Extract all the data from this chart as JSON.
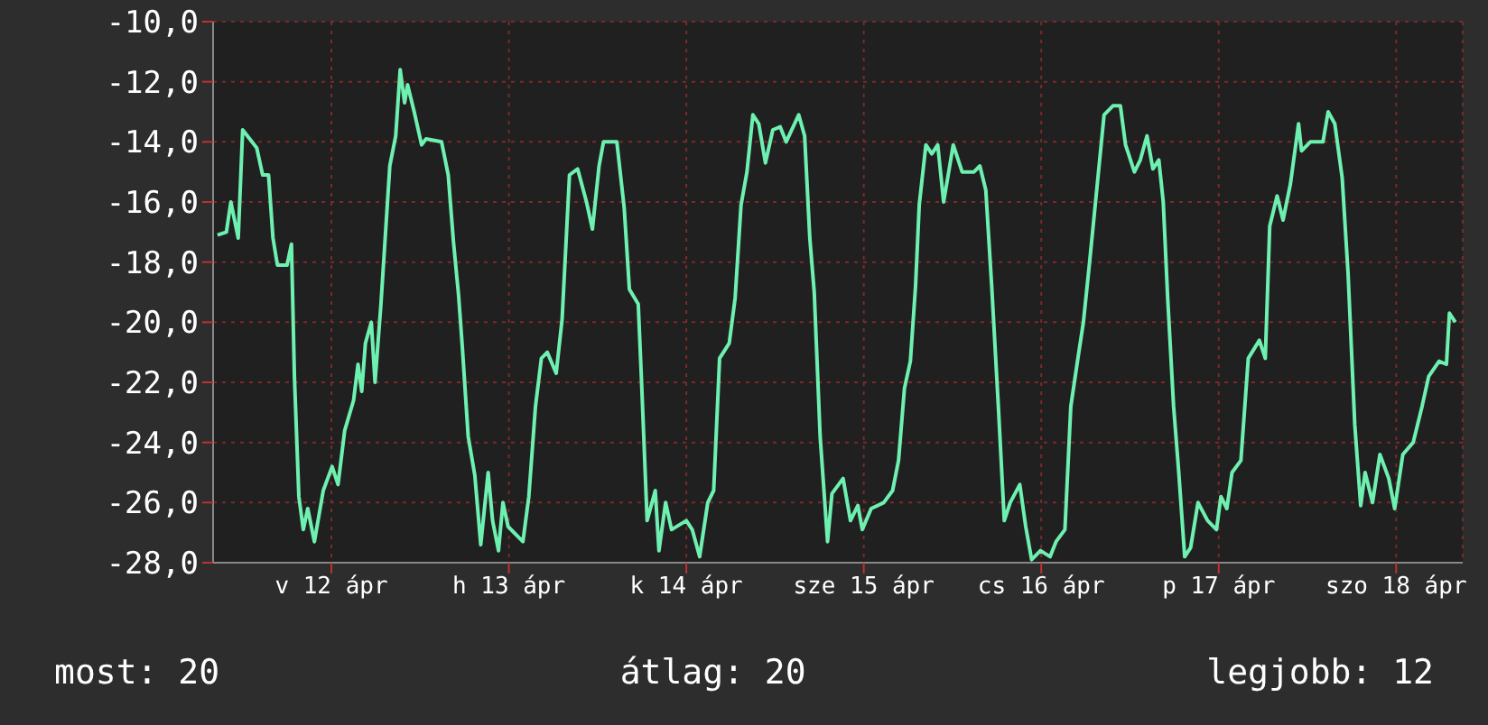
{
  "chart_data": {
    "type": "line",
    "x": [
      "--04-11T20:36",
      "--04-11T21:48",
      "--04-11T22:24",
      "--04-11T23:24",
      "--04-12T00:00",
      "--04-12T01:54",
      "--04-12T02:42",
      "--04-12T03:30",
      "--04-12T04:06",
      "--04-12T04:42",
      "--04-12T06:00",
      "--04-12T06:36",
      "--04-12T07:00",
      "--04-12T07:36",
      "--04-12T08:12",
      "--04-12T08:48",
      "--04-12T09:42",
      "--04-12T10:54",
      "--04-12T12:06",
      "--04-12T12:54",
      "--04-12T13:48",
      "--04-12T15:00",
      "--04-12T15:36",
      "--04-12T16:06",
      "--04-12T16:36",
      "--04-12T17:24",
      "--04-12T17:54",
      "--04-12T18:42",
      "--04-12T19:54",
      "--04-12T20:42",
      "--04-12T21:18",
      "--04-12T21:54",
      "--04-12T22:18",
      "--04-12T23:12",
      "--04-13T00:12",
      "--04-13T00:48",
      "--04-13T02:54",
      "--04-13T03:48",
      "--04-13T04:30",
      "--04-13T05:12",
      "--04-13T05:42",
      "--04-13T06:30",
      "--04-13T07:24",
      "--04-13T08:12",
      "--04-13T09:12",
      "--04-13T09:48",
      "--04-13T10:36",
      "--04-13T11:12",
      "--04-13T11:54",
      "--04-13T13:54",
      "--04-13T14:42",
      "--04-13T15:36",
      "--04-13T16:24",
      "--04-13T17:12",
      "--04-13T18:24",
      "--04-13T19:12",
      "--04-13T20:12",
      "--04-13T21:18",
      "--04-13T22:30",
      "--04-13T23:18",
      "--04-14T00:12",
      "--04-14T00:48",
      "--04-14T02:36",
      "--04-14T03:36",
      "--04-14T04:18",
      "--04-14T05:30",
      "--04-14T05:54",
      "--04-14T06:42",
      "--04-14T07:48",
      "--04-14T08:18",
      "--04-14T09:12",
      "--04-14T10:00",
      "--04-14T12:00",
      "--04-14T12:48",
      "--04-14T13:48",
      "--04-14T14:54",
      "--04-14T15:42",
      "--04-14T16:30",
      "--04-14T17:48",
      "--04-14T18:36",
      "--04-14T19:24",
      "--04-14T20:12",
      "--04-14T21:00",
      "--04-14T21:48",
      "--04-14T22:42",
      "--04-14T23:42",
      "--04-15T00:42",
      "--04-15T01:30",
      "--04-15T03:12",
      "--04-15T04:00",
      "--04-15T04:42",
      "--04-15T05:18",
      "--04-15T06:06",
      "--04-15T07:06",
      "--04-15T07:42",
      "--04-15T09:12",
      "--04-15T10:12",
      "--04-15T11:12",
      "--04-15T11:48",
      "--04-15T13:00",
      "--04-15T14:42",
      "--04-15T15:54",
      "--04-15T16:42",
      "--04-15T17:30",
      "--04-15T18:18",
      "--04-15T19:00",
      "--04-15T19:30",
      "--04-15T20:24",
      "--04-15T21:12",
      "--04-15T22:00",
      "--04-15T22:48",
      "--04-16T00:06",
      "--04-16T01:18",
      "--04-16T02:54",
      "--04-16T03:42",
      "--04-16T04:30",
      "--04-16T05:18",
      "--04-16T06:12",
      "--04-16T07:00",
      "--04-16T07:48",
      "--04-16T09:06",
      "--04-16T09:54",
      "--04-16T10:42",
      "--04-16T11:54",
      "--04-16T13:12",
      "--04-16T14:00",
      "--04-16T15:12",
      "--04-16T16:00",
      "--04-16T16:54",
      "--04-16T17:42",
      "--04-16T18:30",
      "--04-16T19:18",
      "--04-16T20:30",
      "--04-16T21:42",
      "--04-16T22:42",
      "--04-16T23:24",
      "--04-17T00:36",
      "--04-17T01:24",
      "--04-17T02:18",
      "--04-17T03:06",
      "--04-17T03:54",
      "--04-17T04:30",
      "--04-17T05:06",
      "--04-17T05:54",
      "--04-17T06:36",
      "--04-17T07:24",
      "--04-17T08:12",
      "--04-17T09:12",
      "--04-17T10:30",
      "--04-17T11:42",
      "--04-17T12:18",
      "--04-17T13:06",
      "--04-17T13:48",
      "--04-17T15:00",
      "--04-17T16:00",
      "--04-17T17:30",
      "--04-17T18:18",
      "--04-17T18:54",
      "--04-17T19:54",
      "--04-17T20:42",
      "--04-17T21:42",
      "--04-17T22:48",
      "--04-17T23:12",
      "--04-18T00:24",
      "--04-18T02:06",
      "--04-18T02:48",
      "--04-18T03:42",
      "--04-18T04:42",
      "--04-18T05:30",
      "--04-18T06:24",
      "--04-18T07:12",
      "--04-18T07:48",
      "--04-18T08:48",
      "--04-18T09:48",
      "--04-18T11:00",
      "--04-18T11:48",
      "--04-18T12:54",
      "--04-18T14:18",
      "--04-18T15:30",
      "--04-18T16:24",
      "--04-18T17:48",
      "--04-18T18:48",
      "--04-18T19:12",
      "--04-18T20:00"
    ],
    "series": [
      {
        "color": "#6ef0b0",
        "values": [
          -17.1,
          -17.0,
          -16.0,
          -17.2,
          -13.6,
          -14.2,
          -15.1,
          -15.1,
          -17.2,
          -18.1,
          -18.1,
          -17.4,
          -21.8,
          -25.8,
          -26.9,
          -26.2,
          -27.3,
          -25.6,
          -24.8,
          -25.4,
          -23.6,
          -22.6,
          -21.4,
          -22.3,
          -20.7,
          -20.0,
          -22.0,
          -19.4,
          -14.8,
          -13.8,
          -11.6,
          -12.7,
          -12.1,
          -13.0,
          -14.1,
          -13.9,
          -14.0,
          -15.1,
          -17.3,
          -19.1,
          -20.8,
          -23.8,
          -25.1,
          -27.4,
          -25.0,
          -26.6,
          -27.6,
          -26.0,
          -26.8,
          -27.3,
          -25.8,
          -22.8,
          -21.2,
          -21.0,
          -21.7,
          -19.9,
          -15.1,
          -14.9,
          -16.0,
          -16.9,
          -14.8,
          -14.0,
          -14.0,
          -16.2,
          -18.9,
          -19.4,
          -21.7,
          -26.6,
          -25.6,
          -27.6,
          -26.0,
          -26.9,
          -26.6,
          -26.9,
          -27.8,
          -26.0,
          -25.6,
          -21.2,
          -20.7,
          -19.2,
          -16.1,
          -15.0,
          -13.1,
          -13.4,
          -14.7,
          -13.6,
          -13.5,
          -14.0,
          -13.1,
          -13.8,
          -17.2,
          -19.0,
          -23.8,
          -27.3,
          -25.7,
          -25.2,
          -26.6,
          -26.1,
          -26.9,
          -26.2,
          -26.0,
          -25.6,
          -24.6,
          -22.2,
          -21.3,
          -18.8,
          -16.1,
          -14.1,
          -14.4,
          -14.1,
          -16.0,
          -14.1,
          -15.0,
          -15.0,
          -14.8,
          -15.6,
          -18.8,
          -22.8,
          -26.6,
          -26.0,
          -25.4,
          -26.8,
          -27.9,
          -27.6,
          -27.8,
          -27.3,
          -26.9,
          -22.8,
          -21.3,
          -20.0,
          -18.1,
          -16.1,
          -13.1,
          -12.8,
          -12.8,
          -14.1,
          -15.0,
          -14.6,
          -13.8,
          -14.9,
          -14.6,
          -16.0,
          -19.2,
          -22.8,
          -25.0,
          -27.8,
          -27.5,
          -26.0,
          -26.6,
          -26.9,
          -25.8,
          -26.2,
          -25.0,
          -24.6,
          -21.2,
          -20.6,
          -21.2,
          -16.8,
          -15.8,
          -16.6,
          -15.4,
          -13.4,
          -14.3,
          -14.0,
          -14.0,
          -13.0,
          -13.4,
          -15.2,
          -18.4,
          -23.4,
          -26.1,
          -25.0,
          -26.0,
          -24.4,
          -25.2,
          -26.2,
          -24.4,
          -24.0,
          -22.8,
          -21.8,
          -21.3,
          -21.4,
          -19.7,
          -20.0
        ]
      }
    ],
    "xlim": [
      "--04-11T20:00",
      "--04-18T21:00"
    ],
    "xticks": [
      {
        "value": "--04-12T12:00",
        "label": "v 12 ápr"
      },
      {
        "value": "--04-13T12:00",
        "label": "h 13 ápr"
      },
      {
        "value": "--04-14T12:00",
        "label": "k 14 ápr"
      },
      {
        "value": "--04-15T12:00",
        "label": "sze 15 ápr"
      },
      {
        "value": "--04-16T12:00",
        "label": "cs 16 ápr"
      },
      {
        "value": "--04-17T12:00",
        "label": "p 17 ápr"
      },
      {
        "value": "--04-18T12:00",
        "label": "szo 18 ápr"
      }
    ],
    "ylim": [
      -28,
      -10
    ],
    "yticks": [
      {
        "value": -28,
        "label": "-28,0"
      },
      {
        "value": -26,
        "label": "-26,0"
      },
      {
        "value": -24,
        "label": "-24,0"
      },
      {
        "value": -22,
        "label": "-22,0"
      },
      {
        "value": -20,
        "label": "-20,0"
      },
      {
        "value": -18,
        "label": "-18,0"
      },
      {
        "value": -16,
        "label": "-16,0"
      },
      {
        "value": -14,
        "label": "-14,0"
      },
      {
        "value": -12,
        "label": "-12,0"
      },
      {
        "value": -10,
        "label": "-10,0"
      }
    ],
    "grid": true,
    "annotations": [
      "most: 20",
      "átlag: 20",
      "legjobb: 12"
    ]
  }
}
